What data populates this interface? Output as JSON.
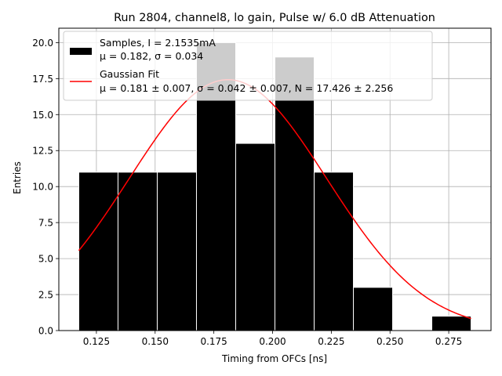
{
  "chart_data": {
    "type": "bar",
    "title": "Run 2804, channel8, lo gain, Pulse w/ 6.0 dB Attenuation",
    "xlabel": "Timing from OFCs [ns]",
    "ylabel": "Entries",
    "xlim": [
      0.109,
      0.293
    ],
    "ylim": [
      0,
      21
    ],
    "xticks": [
      0.125,
      0.15,
      0.175,
      0.2,
      0.225,
      0.25,
      0.275
    ],
    "xtick_labels": [
      "0.125",
      "0.150",
      "0.175",
      "0.200",
      "0.225",
      "0.250",
      "0.275"
    ],
    "yticks": [
      0,
      2.5,
      5,
      7.5,
      10,
      12.5,
      15,
      17.5,
      20
    ],
    "ytick_labels": [
      "0.0",
      "2.5",
      "5.0",
      "7.5",
      "10.0",
      "12.5",
      "15.0",
      "17.5",
      "20.0"
    ],
    "grid": true,
    "legend_position": "top-left",
    "histogram": {
      "bin_edges": [
        0.1175,
        0.1342,
        0.1509,
        0.1676,
        0.1843,
        0.201,
        0.2177,
        0.2344,
        0.2511,
        0.2678,
        0.2845
      ],
      "counts": [
        11,
        11,
        11,
        20,
        13,
        19,
        11,
        3,
        0,
        1
      ],
      "color": "#000000",
      "edge_color": "#ffffff"
    },
    "fit": {
      "mu": 0.181,
      "sigma": 0.042,
      "N": 17.426,
      "x_range": [
        0.1175,
        0.2845
      ],
      "color": "#ff0000"
    },
    "legend": [
      {
        "kind": "patch",
        "color": "#000000",
        "line1": "Samples, I = 2.1535mA",
        "line2": "μ = 0.182, σ = 0.034"
      },
      {
        "kind": "line",
        "color": "#ff0000",
        "line1": "Gaussian Fit",
        "line2": "μ = 0.181 ± 0.007, σ = 0.042 ± 0.007, N = 17.426 ± 2.256"
      }
    ]
  }
}
